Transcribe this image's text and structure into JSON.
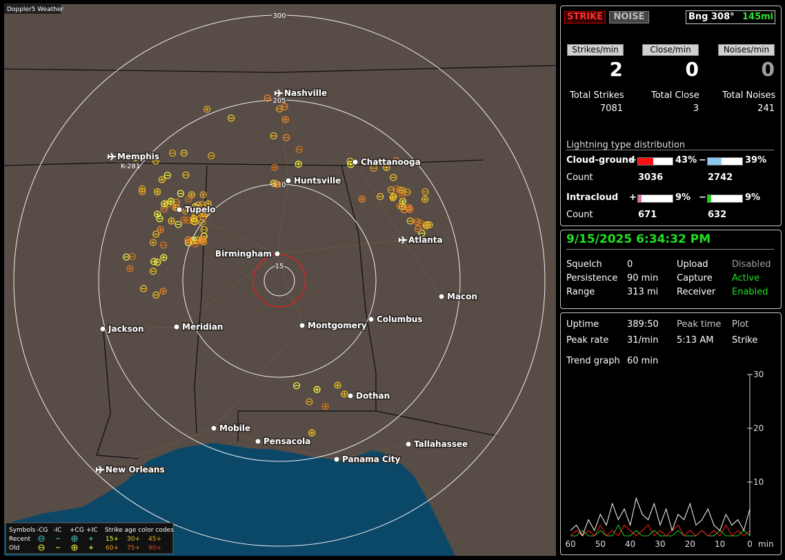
{
  "map": {
    "title": "Doppler5 Weather",
    "rings": [
      300,
      205,
      110,
      15
    ],
    "marker_label": "K-281",
    "cities": [
      "Nashville",
      "Memphis",
      "Chattanooga",
      "Huntsville",
      "Tupelo",
      "Atlanta",
      "Birmingham",
      "Macon",
      "Jackson",
      "Meridian",
      "Montgomery",
      "Columbus",
      "Dothan",
      "Mobile",
      "Pensacola",
      "Tallahassee",
      "Panama City",
      "New Orleans"
    ],
    "legend": {
      "symbols_title": "Symbols",
      "columns": [
        "-CG",
        "-IC",
        "+CG",
        "+IC"
      ],
      "rows": [
        "Recent",
        "Old"
      ],
      "age_title": "Strike age color codes",
      "recent_ages": [
        "15+",
        "30+",
        "45+"
      ],
      "old_ages": [
        "60+",
        "75+",
        "90+"
      ]
    }
  },
  "status": {
    "buttons": [
      "STRIKE",
      "NOISE"
    ],
    "bearing": "Bng 308°",
    "distance": "145mi",
    "rates": [
      {
        "label": "Strikes/min",
        "value": 2
      },
      {
        "label": "Close/min",
        "value": 0
      },
      {
        "label": "Noises/min",
        "value": 0
      }
    ],
    "totals": [
      {
        "label": "Total Strikes",
        "value": 7081
      },
      {
        "label": "Total Close",
        "value": 3
      },
      {
        "label": "Total Noises",
        "value": 241
      }
    ],
    "distribution": {
      "title": "Lightning type distribution",
      "count_label": "Count",
      "rows": [
        {
          "label": "Cloud-ground",
          "positive": {
            "sign": "+",
            "percent": {
              "value": 43,
              "label": "43%"
            },
            "count": 3036,
            "color": "#ff1010"
          },
          "negative": {
            "sign": "−",
            "percent": {
              "value": 39,
              "label": "39%"
            },
            "count": 2742,
            "color": "#8cc8f0"
          }
        },
        {
          "label": "Intracloud",
          "positive": {
            "sign": "+",
            "percent": {
              "value": 9,
              "label": "9%"
            },
            "count": 671,
            "color": "#e070b0"
          },
          "negative": {
            "sign": "−",
            "percent": {
              "value": 9,
              "label": "9%"
            },
            "count": 632,
            "color": "#20d020"
          }
        }
      ]
    }
  },
  "settings": {
    "datetime": "9/15/2025 6:34:32 PM",
    "rows": [
      [
        {
          "label": "Squelch",
          "value": 0,
          "color": "#ffffff"
        },
        {
          "label": "Upload",
          "value": "Disabled",
          "color": "#a0a0a0"
        }
      ],
      [
        {
          "label": "Persistence",
          "value": "90 min",
          "color": "#ffffff"
        },
        {
          "label": "Capture",
          "value": "Active",
          "color": "#20e020"
        }
      ],
      [
        {
          "label": "Range",
          "value": "313 mi",
          "color": "#ffffff"
        },
        {
          "label": "Receiver",
          "value": "Enabled",
          "color": "#20e020"
        }
      ]
    ]
  },
  "stats": {
    "items": [
      {
        "label": "Uptime",
        "value": "389:50"
      },
      {
        "label": "Peak rate",
        "value": "31/min"
      }
    ],
    "peak_time": {
      "label": "Peak time",
      "value": "5:13 AM"
    },
    "plot": {
      "label": "Plot",
      "value": "Strike"
    },
    "trend": {
      "label": "Trend graph",
      "value": "60 min"
    }
  },
  "chart_data": {
    "type": "line",
    "xlabel": "min",
    "xlim": [
      60,
      0
    ],
    "ylim": [
      0,
      30
    ],
    "xticks": [
      60,
      50,
      40,
      30,
      20,
      10,
      0
    ],
    "yticks": [
      10,
      20,
      30
    ],
    "x": [
      60,
      58,
      56,
      54,
      52,
      50,
      48,
      46,
      44,
      42,
      40,
      38,
      36,
      34,
      32,
      30,
      28,
      26,
      24,
      22,
      20,
      18,
      16,
      14,
      12,
      10,
      8,
      6,
      4,
      2,
      0
    ],
    "series": [
      {
        "color": "#ffffff",
        "values": [
          1,
          2,
          0,
          3,
          1,
          4,
          2,
          6,
          3,
          5,
          2,
          7,
          4,
          3,
          6,
          2,
          5,
          1,
          4,
          3,
          6,
          2,
          3,
          5,
          2,
          1,
          4,
          2,
          3,
          1,
          5
        ]
      },
      {
        "color": "#ff2020",
        "values": [
          0,
          1,
          0,
          1,
          0,
          2,
          0,
          1,
          0,
          2,
          1,
          0,
          1,
          2,
          0,
          1,
          0,
          1,
          2,
          0,
          1,
          0,
          1,
          0,
          1,
          0,
          2,
          0,
          1,
          0,
          1
        ]
      },
      {
        "color": "#20d020",
        "values": [
          0,
          0,
          1,
          0,
          0,
          1,
          0,
          0,
          2,
          0,
          0,
          1,
          0,
          0,
          1,
          0,
          0,
          0,
          1,
          0,
          0,
          0,
          1,
          0,
          0,
          1,
          0,
          0,
          0,
          1,
          0
        ]
      }
    ]
  }
}
